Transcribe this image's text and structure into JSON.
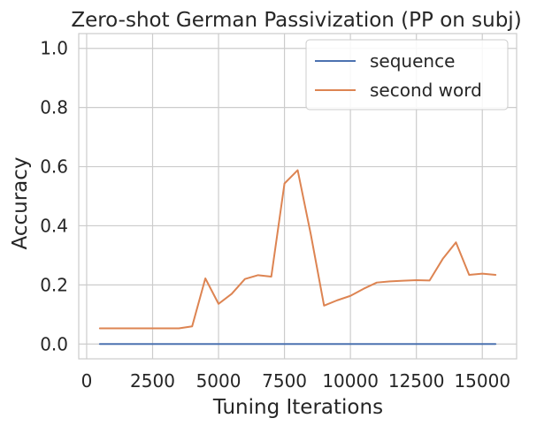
{
  "chart_data": {
    "type": "line",
    "title": "Zero-shot German Passivization (PP on subj)",
    "xlabel": "Tuning Iterations",
    "ylabel": "Accuracy",
    "xlim": [
      -300,
      16300
    ],
    "ylim": [
      -0.05,
      1.05
    ],
    "xticks": [
      0,
      2500,
      5000,
      7500,
      10000,
      12500,
      15000
    ],
    "xtick_labels": [
      "0",
      "2500",
      "5000",
      "7500",
      "10000",
      "12500",
      "15000"
    ],
    "yticks": [
      0.0,
      0.2,
      0.4,
      0.6,
      0.8,
      1.0
    ],
    "ytick_labels": [
      "0.0",
      "0.2",
      "0.4",
      "0.6",
      "0.8",
      "1.0"
    ],
    "grid": true,
    "legend_position": "top-right",
    "series": [
      {
        "name": "sequence",
        "color": "#4c72b0",
        "x": [
          500,
          15500
        ],
        "y": [
          0.0,
          0.0
        ]
      },
      {
        "name": "second word",
        "color": "#dd8452",
        "x": [
          500,
          1000,
          1500,
          2000,
          2500,
          3000,
          3500,
          4000,
          4500,
          5000,
          5500,
          6000,
          6500,
          7000,
          7500,
          8000,
          8500,
          9000,
          9500,
          10000,
          10500,
          11000,
          11500,
          12000,
          12500,
          13000,
          13500,
          14000,
          14500,
          15000,
          15500
        ],
        "y": [
          0.053,
          0.053,
          0.053,
          0.053,
          0.053,
          0.053,
          0.053,
          0.06,
          0.222,
          0.136,
          0.17,
          0.22,
          0.233,
          0.228,
          0.543,
          0.588,
          0.37,
          0.13,
          0.148,
          0.163,
          0.187,
          0.208,
          0.212,
          0.214,
          0.216,
          0.215,
          0.288,
          0.344,
          0.234,
          0.238,
          0.234
        ]
      }
    ]
  }
}
